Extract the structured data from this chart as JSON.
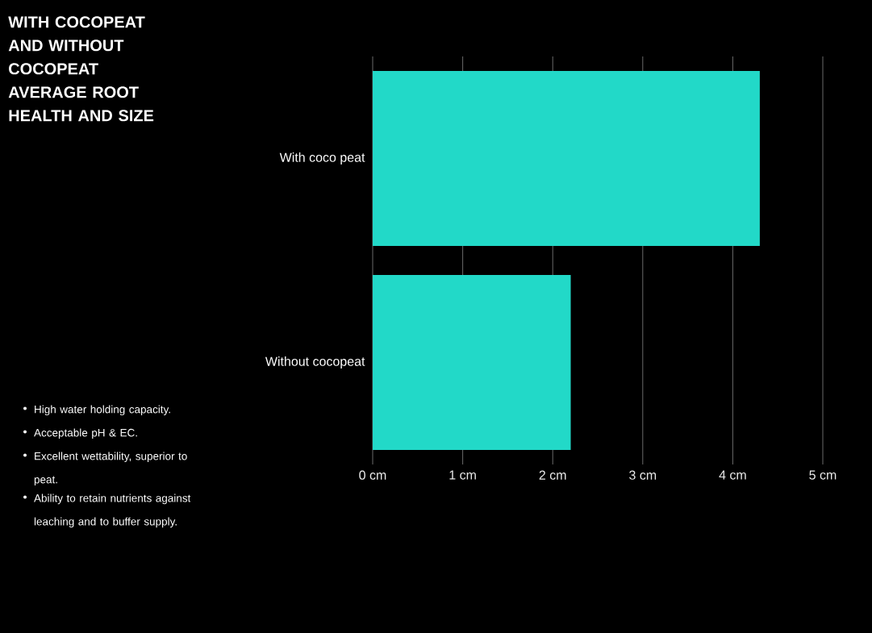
{
  "chart_data": {
    "type": "bar",
    "orientation": "horizontal",
    "title": "WITH COCOPEAT AND WITHOUT COCOPEAT AVERAGE ROOT HEALTH AND SIZE",
    "categories": [
      "With coco peat",
      "Without cocopeat"
    ],
    "values": [
      4.3,
      2.2
    ],
    "color": "#22d9c8",
    "xlim": [
      0,
      5
    ],
    "xticks": [
      {
        "value": 0,
        "label": "0 cm"
      },
      {
        "value": 1,
        "label": "1 cm"
      },
      {
        "value": 2,
        "label": "2 cm"
      },
      {
        "value": 3,
        "label": "3 cm"
      },
      {
        "value": 4,
        "label": "4 cm"
      },
      {
        "value": 5,
        "label": "5 cm"
      }
    ],
    "grid": "x",
    "annotations": [
      "High water holding capacity.",
      "Acceptable pH & EC.",
      "Excellent wettability, superior to peat.",
      "Ability to retain nutrients against leaching and to buffer supply."
    ]
  }
}
